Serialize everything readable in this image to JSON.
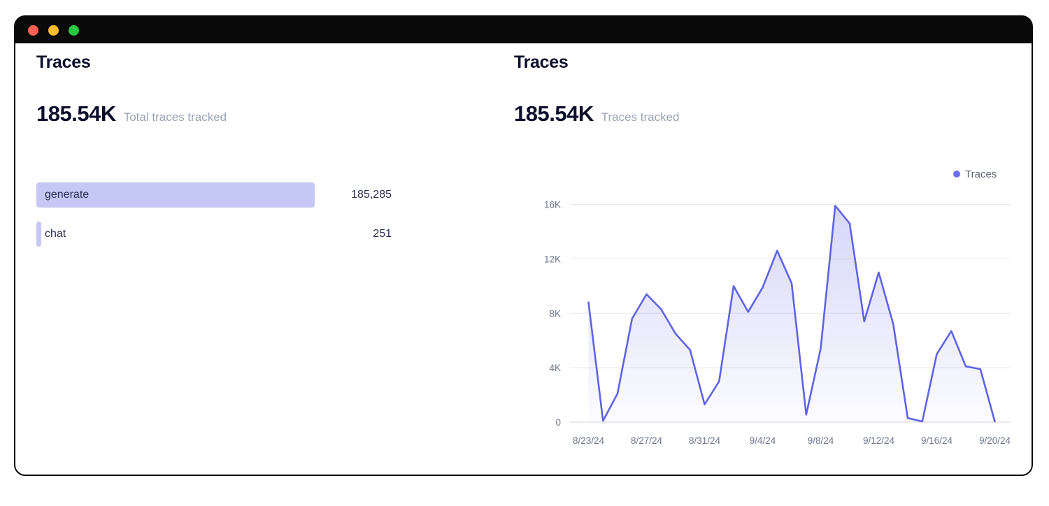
{
  "window": {
    "titlebar_buttons": [
      {
        "name": "close",
        "color": "#ff5f57"
      },
      {
        "name": "minimize",
        "color": "#febc2e"
      },
      {
        "name": "zoom",
        "color": "#28c840"
      }
    ]
  },
  "left_panel": {
    "title": "Traces",
    "metric_value": "185.54K",
    "metric_label": "Total traces tracked",
    "bar_color": "#c5c7f4",
    "bars": [
      {
        "label": "generate",
        "value": 185285,
        "display": "185,285"
      },
      {
        "label": "chat",
        "value": 251,
        "display": "251"
      }
    ]
  },
  "right_panel": {
    "title": "Traces",
    "metric_value": "185.54K",
    "metric_label": "Traces tracked",
    "legend_label": "Traces"
  },
  "chart_data": {
    "type": "area",
    "title": "Traces",
    "series_name": "Traces",
    "x": [
      "8/23/24",
      "8/24/24",
      "8/25/24",
      "8/26/24",
      "8/27/24",
      "8/28/24",
      "8/29/24",
      "8/30/24",
      "8/31/24",
      "9/1/24",
      "9/2/24",
      "9/3/24",
      "9/4/24",
      "9/5/24",
      "9/6/24",
      "9/7/24",
      "9/8/24",
      "9/9/24",
      "9/10/24",
      "9/11/24",
      "9/12/24",
      "9/13/24",
      "9/14/24",
      "9/15/24",
      "9/16/24",
      "9/17/24",
      "9/18/24",
      "9/19/24",
      "9/20/24"
    ],
    "values": [
      8800,
      100,
      2100,
      7600,
      9400,
      8300,
      6500,
      5300,
      1300,
      3000,
      10000,
      8100,
      9900,
      12600,
      10200,
      550,
      5400,
      15900,
      14600,
      7400,
      11000,
      7200,
      300,
      50,
      5000,
      6700,
      4100,
      3900,
      50
    ],
    "x_tick_step": 4,
    "x_tick_labels": [
      "8/23/24",
      "8/27/24",
      "8/31/24",
      "9/4/24",
      "9/8/24",
      "9/12/24",
      "9/16/24",
      "9/20/24"
    ],
    "y_ticks": [
      {
        "value": 0,
        "label": "0"
      },
      {
        "value": 4000,
        "label": "4K"
      },
      {
        "value": 8000,
        "label": "8K"
      },
      {
        "value": 12000,
        "label": "12K"
      },
      {
        "value": 16000,
        "label": "16K"
      }
    ],
    "ylim": [
      0,
      16000
    ],
    "grid": true,
    "legend_position": "top-right",
    "line_color": "#5f63e6",
    "grid_color": "#e7e8ec",
    "axis_line_color": "#d0d3da",
    "axis_text_color": "#6e7690"
  }
}
